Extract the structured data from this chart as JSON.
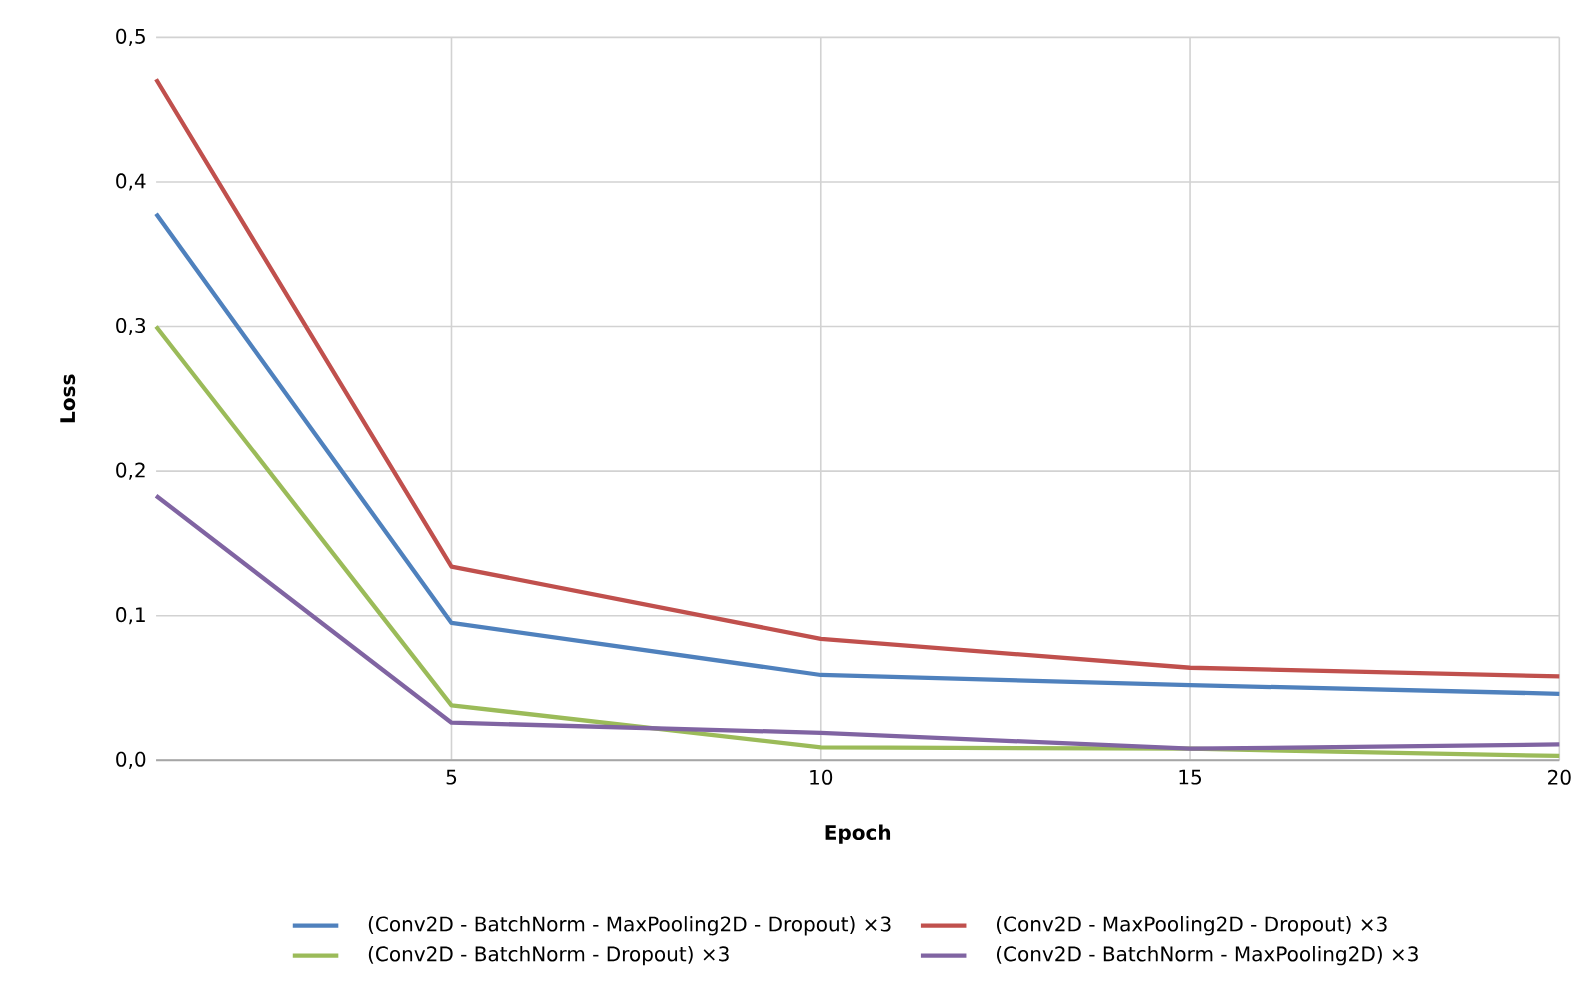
{
  "chart_data": {
    "type": "line",
    "xlabel": "Epoch",
    "ylabel": "Loss",
    "x": [
      1,
      5,
      10,
      15,
      20
    ],
    "series": [
      {
        "name": "(Conv2D - BatchNorm - MaxPooling2D - Dropout) ×3",
        "color": "#4f81bd",
        "values": [
          0.378,
          0.095,
          0.059,
          0.052,
          0.046
        ]
      },
      {
        "name": "(Conv2D - MaxPooling2D - Dropout) ×3",
        "color": "#c0504d",
        "values": [
          0.471,
          0.134,
          0.084,
          0.064,
          0.058
        ]
      },
      {
        "name": "(Conv2D - BatchNorm - Dropout) ×3",
        "color": "#9bbb59",
        "values": [
          0.3,
          0.038,
          0.009,
          0.008,
          0.003
        ]
      },
      {
        "name": "(Conv2D - BatchNorm - MaxPooling2D) ×3",
        "color": "#8064a2",
        "values": [
          0.183,
          0.026,
          0.019,
          0.008,
          0.011
        ]
      }
    ],
    "xlim": [
      1,
      20
    ],
    "xticks": [
      5,
      10,
      15,
      20
    ],
    "ylim": [
      0,
      0.5
    ],
    "yticks": [
      {
        "value": 0,
        "label": "0,0"
      },
      {
        "value": 0.1,
        "label": "0,1"
      },
      {
        "value": 0.2,
        "label": "0,2"
      },
      {
        "value": 0.3,
        "label": "0,3"
      },
      {
        "value": 0.4,
        "label": "0,4"
      },
      {
        "value": 0.5,
        "label": "0,5"
      }
    ],
    "grid": true,
    "legend": "bottom",
    "marker": "none",
    "line_style": "solid"
  }
}
